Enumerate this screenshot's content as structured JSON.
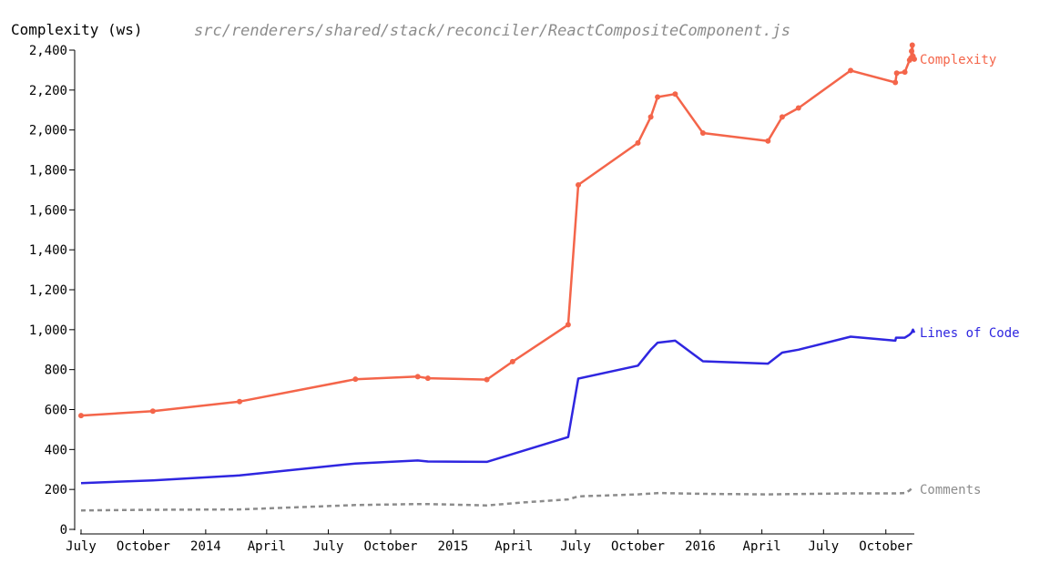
{
  "chart_data": {
    "type": "line",
    "title": "src/renderers/shared/stack/reconciler/ReactCompositeComponent.js",
    "ylabel": "Complexity (ws)",
    "xlabel": "",
    "ylim": [
      0,
      2400
    ],
    "xlim": [
      "2013-07-01",
      "2016-11-12"
    ],
    "yticks": [
      0,
      200,
      400,
      600,
      800,
      1000,
      1200,
      1400,
      1600,
      1800,
      2000,
      2200,
      2400
    ],
    "ytick_labels": [
      "0",
      "200",
      "400",
      "600",
      "800",
      "1,000",
      "1,200",
      "1,400",
      "1,600",
      "1,800",
      "2,000",
      "2,200",
      "2,400"
    ],
    "xticks": [
      {
        "date": "2013-07-01",
        "label": "July"
      },
      {
        "date": "2013-10-01",
        "label": "October"
      },
      {
        "date": "2014-01-01",
        "label": "2014"
      },
      {
        "date": "2014-04-01",
        "label": "April"
      },
      {
        "date": "2014-07-01",
        "label": "July"
      },
      {
        "date": "2014-10-01",
        "label": "October"
      },
      {
        "date": "2015-01-01",
        "label": "2015"
      },
      {
        "date": "2015-04-01",
        "label": "April"
      },
      {
        "date": "2015-07-01",
        "label": "July"
      },
      {
        "date": "2015-10-01",
        "label": "October"
      },
      {
        "date": "2016-01-01",
        "label": "2016"
      },
      {
        "date": "2016-04-01",
        "label": "April"
      },
      {
        "date": "2016-07-01",
        "label": "July"
      },
      {
        "date": "2016-10-01",
        "label": "October"
      }
    ],
    "grid": false,
    "legend": "inline labels at line ends",
    "series": [
      {
        "name": "Complexity",
        "color": "#f4654a",
        "style": "solid",
        "markers": true,
        "points": [
          [
            "2013-07-01",
            570
          ],
          [
            "2013-10-15",
            592
          ],
          [
            "2014-02-20",
            640
          ],
          [
            "2014-08-10",
            752
          ],
          [
            "2014-11-10",
            765
          ],
          [
            "2014-11-25",
            757
          ],
          [
            "2015-02-20",
            750
          ],
          [
            "2015-03-30",
            840
          ],
          [
            "2015-06-20",
            1025
          ],
          [
            "2015-07-05",
            1725
          ],
          [
            "2015-10-01",
            1935
          ],
          [
            "2015-10-20",
            2065
          ],
          [
            "2015-10-30",
            2165
          ],
          [
            "2015-11-25",
            2180
          ],
          [
            "2016-01-05",
            1985
          ],
          [
            "2016-04-10",
            1945
          ],
          [
            "2016-05-01",
            2065
          ],
          [
            "2016-05-25",
            2110
          ],
          [
            "2016-08-10",
            2298
          ],
          [
            "2016-10-15",
            2238
          ],
          [
            "2016-10-17",
            2285
          ],
          [
            "2016-10-29",
            2290
          ],
          [
            "2016-11-05",
            2350
          ],
          [
            "2016-11-07",
            2360
          ],
          [
            "2016-11-08",
            2395
          ],
          [
            "2016-11-09",
            2425
          ],
          [
            "2016-11-10",
            2370
          ],
          [
            "2016-11-12",
            2355
          ]
        ]
      },
      {
        "name": "Lines of Code",
        "color": "#2f26e0",
        "style": "solid",
        "markers": false,
        "points": [
          [
            "2013-07-01",
            232
          ],
          [
            "2013-10-15",
            245
          ],
          [
            "2014-02-20",
            270
          ],
          [
            "2014-08-10",
            330
          ],
          [
            "2014-11-10",
            345
          ],
          [
            "2014-11-25",
            340
          ],
          [
            "2015-02-20",
            338
          ],
          [
            "2015-06-20",
            462
          ],
          [
            "2015-07-05",
            755
          ],
          [
            "2015-10-01",
            820
          ],
          [
            "2015-10-20",
            900
          ],
          [
            "2015-10-30",
            935
          ],
          [
            "2015-11-25",
            945
          ],
          [
            "2016-01-05",
            842
          ],
          [
            "2016-04-10",
            830
          ],
          [
            "2016-05-01",
            885
          ],
          [
            "2016-05-25",
            900
          ],
          [
            "2016-08-10",
            965
          ],
          [
            "2016-10-15",
            945
          ],
          [
            "2016-10-16",
            960
          ],
          [
            "2016-10-29",
            960
          ],
          [
            "2016-11-05",
            975
          ],
          [
            "2016-11-08",
            985
          ],
          [
            "2016-11-10",
            1000
          ],
          [
            "2016-11-12",
            985
          ]
        ]
      },
      {
        "name": "Comments",
        "color": "#8c8c8c",
        "style": "dashed",
        "markers": false,
        "points": [
          [
            "2013-07-01",
            95
          ],
          [
            "2013-10-15",
            98
          ],
          [
            "2014-02-20",
            100
          ],
          [
            "2014-08-10",
            122
          ],
          [
            "2014-11-10",
            127
          ],
          [
            "2014-11-25",
            127
          ],
          [
            "2015-02-20",
            120
          ],
          [
            "2015-04-15",
            135
          ],
          [
            "2015-06-20",
            150
          ],
          [
            "2015-07-05",
            165
          ],
          [
            "2015-10-01",
            175
          ],
          [
            "2015-11-01",
            182
          ],
          [
            "2016-01-05",
            178
          ],
          [
            "2016-04-10",
            175
          ],
          [
            "2016-08-10",
            180
          ],
          [
            "2016-10-15",
            180
          ],
          [
            "2016-10-29",
            182
          ],
          [
            "2016-11-05",
            195
          ],
          [
            "2016-11-08",
            205
          ],
          [
            "2016-11-12",
            200
          ]
        ]
      }
    ]
  }
}
